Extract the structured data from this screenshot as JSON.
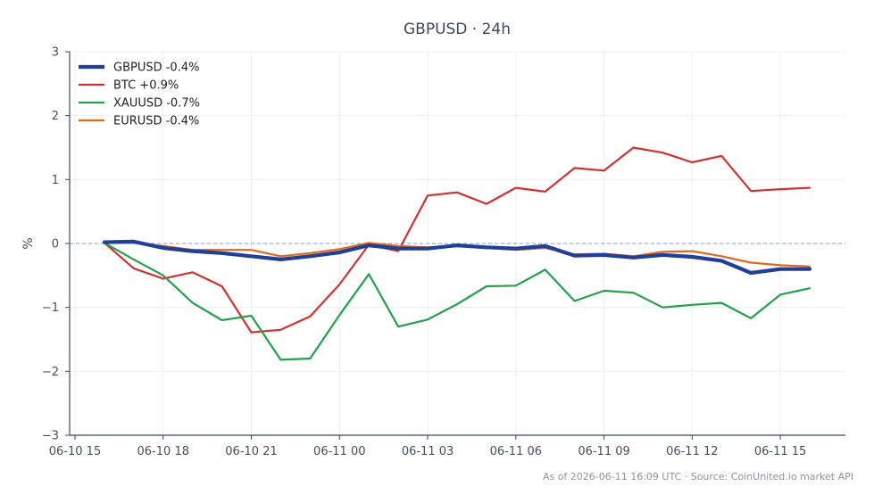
{
  "chart_data": {
    "type": "line",
    "title": "GBPUSD · 24h",
    "ylabel": "%",
    "xlabel": "",
    "ylim": [
      -3,
      3
    ],
    "xlim": [
      0,
      26.3
    ],
    "yticks": [
      {
        "v": 3,
        "label": "3"
      },
      {
        "v": 2,
        "label": "2"
      },
      {
        "v": 1,
        "label": "1"
      },
      {
        "v": 0,
        "label": "0"
      },
      {
        "v": -1,
        "label": "−1"
      },
      {
        "v": -2,
        "label": "−2"
      },
      {
        "v": -3,
        "label": "−3"
      }
    ],
    "xticks": [
      {
        "v": 0,
        "label": "06-10 15"
      },
      {
        "v": 3,
        "label": "06-10 18"
      },
      {
        "v": 6,
        "label": "06-10 21"
      },
      {
        "v": 9,
        "label": "06-11 00"
      },
      {
        "v": 12,
        "label": "06-11 03"
      },
      {
        "v": 15,
        "label": "06-11 06"
      },
      {
        "v": 18,
        "label": "06-11 09"
      },
      {
        "v": 21,
        "label": "06-11 12"
      },
      {
        "v": 24,
        "label": "06-11 15"
      }
    ],
    "x": [
      1,
      2,
      3,
      4,
      5,
      6,
      7,
      8,
      9,
      10,
      11,
      12,
      13,
      14,
      15,
      16,
      17,
      18,
      19,
      20,
      21,
      22,
      23,
      24,
      25
    ],
    "grid": true,
    "zero_line": true,
    "legend_position": "top-left",
    "series": [
      {
        "name": "GBPUSD -0.4%",
        "color": "#1f3f99",
        "width": 4.2,
        "values": [
          0.02,
          0.03,
          -0.07,
          -0.12,
          -0.15,
          -0.2,
          -0.25,
          -0.2,
          -0.14,
          -0.03,
          -0.08,
          -0.08,
          -0.03,
          -0.06,
          -0.08,
          -0.04,
          -0.19,
          -0.18,
          -0.22,
          -0.18,
          -0.21,
          -0.27,
          -0.46,
          -0.4,
          -0.4
        ]
      },
      {
        "name": "BTC +0.9%",
        "color": "#d03232",
        "width": 2.2,
        "values": [
          0.01,
          -0.39,
          -0.55,
          -0.45,
          -0.67,
          -1.39,
          -1.35,
          -1.14,
          -0.64,
          -0.02,
          -0.12,
          0.75,
          0.8,
          0.62,
          0.87,
          0.81,
          1.18,
          1.14,
          1.5,
          1.42,
          1.27,
          1.37,
          0.82,
          0.85,
          0.87
        ]
      },
      {
        "name": "XAUUSD -0.7%",
        "color": "#22a14a",
        "width": 2.2,
        "values": [
          0.01,
          -0.25,
          -0.5,
          -0.93,
          -1.2,
          -1.13,
          -1.82,
          -1.8,
          -1.12,
          -0.48,
          -1.3,
          -1.19,
          -0.95,
          -0.67,
          -0.66,
          -0.41,
          -0.9,
          -0.74,
          -0.77,
          -1.0,
          -0.96,
          -0.93,
          -1.17,
          -0.8,
          -0.7
        ]
      },
      {
        "name": "EURUSD -0.4%",
        "color": "#e0671e",
        "width": 2.2,
        "values": [
          0.01,
          0.01,
          -0.04,
          -0.1,
          -0.1,
          -0.1,
          -0.2,
          -0.15,
          -0.09,
          0.01,
          -0.04,
          -0.06,
          -0.04,
          -0.07,
          -0.1,
          -0.07,
          -0.17,
          -0.16,
          -0.2,
          -0.13,
          -0.12,
          -0.2,
          -0.3,
          -0.34,
          -0.36
        ]
      }
    ]
  },
  "footer": {
    "source": "As of 2026-06-11 16:09 UTC · Source: CoinUnited.io market API"
  }
}
